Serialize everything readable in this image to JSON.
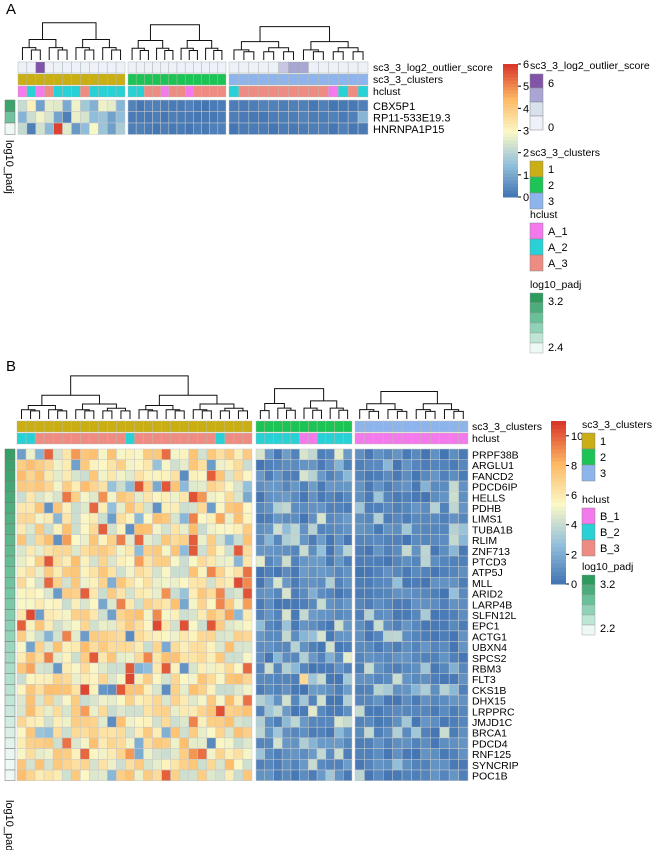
{
  "chart_data": [
    {
      "type": "heatmap",
      "panel": "A",
      "rows": [
        "CBX5P1",
        "RP11-533E19.3",
        "HNRNPA1P15"
      ],
      "column_groups": [
        {
          "cluster": "1",
          "n": 12,
          "hclust": [
            "A_1",
            "A_2",
            "A_1",
            "A_3",
            "A_2",
            "A_2",
            "A_2",
            "A_3",
            "A_2",
            "A_2",
            "A_2",
            "A_2"
          ]
        },
        {
          "cluster": "2",
          "n": 12,
          "hclust": [
            "A_2",
            "A_2",
            "A_3",
            "A_3",
            "A_1",
            "A_3",
            "A_3",
            "A_1",
            "A_3",
            "A_3",
            "A_3",
            "A_3"
          ]
        },
        {
          "cluster": "3",
          "n": 14,
          "hclust": [
            "A_2",
            "A_3",
            "A_3",
            "A_3",
            "A_3",
            "A_3",
            "A_3",
            "A_3",
            "A_3",
            "A_3",
            "A_1",
            "A_2",
            "A_3",
            "A_2"
          ]
        }
      ],
      "annotation_rows": [
        "sc3_3_log2_outlier_score",
        "sc3_3_clusters",
        "hclust"
      ],
      "row_annotation": "log10_padj",
      "color_scale": {
        "min": 0,
        "max": 6,
        "ticks": [
          "0",
          "1",
          "2",
          "3",
          "4",
          "5",
          "6"
        ]
      },
      "legends": [
        {
          "title": "sc3_3_log2_outlier_score",
          "items": [
            "6",
            "0"
          ]
        },
        {
          "title": "sc3_3_clusters",
          "items": [
            "1",
            "2",
            "3"
          ]
        },
        {
          "title": "hclust",
          "items": [
            "A_1",
            "A_2",
            "A_3"
          ]
        },
        {
          "title": "log10_padj",
          "items": [
            "3.2",
            "2.4"
          ]
        }
      ]
    },
    {
      "type": "heatmap",
      "panel": "B",
      "rows": [
        "PRPF38B",
        "ARGLU1",
        "FANCD2",
        "PDCD6IP",
        "HELLS",
        "PDHB",
        "LIMS1",
        "TUBA1B",
        "RLIM",
        "ZNF713",
        "PTCD3",
        "ATP5J",
        "MLL",
        "ARID2",
        "LARP4B",
        "SLFN12L",
        "EPC1",
        "ACTG1",
        "UBXN4",
        "SPCS2",
        "RBM3",
        "FLT3",
        "CKS1B",
        "DHX15",
        "LRPPRC",
        "JMJD1C",
        "BRCA1",
        "PDCD4",
        "RNF125",
        "SYNCRIP",
        "POC1B"
      ],
      "column_groups": [
        {
          "cluster": "1",
          "n": 26
        },
        {
          "cluster": "2",
          "n": 11
        },
        {
          "cluster": "3",
          "n": 12
        }
      ],
      "annotation_rows": [
        "sc3_3_clusters",
        "hclust"
      ],
      "row_annotation": "log10_padj",
      "color_scale": {
        "min": 0,
        "max": 11,
        "ticks": [
          "0",
          "2",
          "4",
          "6",
          "8",
          "10"
        ]
      },
      "legends": [
        {
          "title": "sc3_3_clusters",
          "items": [
            "1",
            "2",
            "3"
          ]
        },
        {
          "title": "hclust",
          "items": [
            "B_1",
            "B_2",
            "B_3"
          ]
        },
        {
          "title": "log10_padj",
          "items": [
            "3.2",
            "2.2"
          ]
        }
      ]
    }
  ],
  "colors": {
    "cluster_1": "#C9AE14",
    "cluster_2": "#1BC455",
    "cluster_3": "#8EB4EE",
    "hclust_1": "#F479EC",
    "hclust_2": "#27D1D6",
    "hclust_3": "#EE8C83",
    "outlier_high": "#8254A8",
    "outlier_mid": "#A9A6D4",
    "outlier_low": "#EEF2F8",
    "padj_high": "#2E9A5E",
    "padj_mid": "#78C8A6",
    "padj_low": "#EEF8F4",
    "heat_low": "#3D6FB0",
    "heat_mid": "#FBF8C6",
    "heat_high": "#D9382A"
  }
}
